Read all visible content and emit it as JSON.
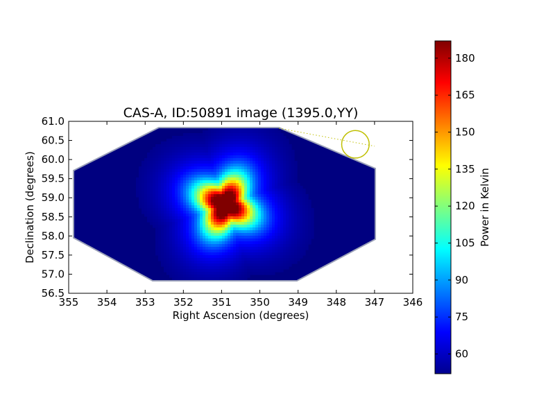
{
  "chart_data": {
    "type": "heatmap",
    "title": "CAS-A, ID:50891 image (1395.0,YY)",
    "xlabel": "Right Ascension (degrees)",
    "ylabel": "Declination (degrees)",
    "x_ticks": [
      "355",
      "354",
      "353",
      "352",
      "351",
      "350",
      "349",
      "348",
      "347",
      "346"
    ],
    "y_ticks": [
      "61.0",
      "60.5",
      "60.0",
      "59.5",
      "59.0",
      "58.5",
      "58.0",
      "57.5",
      "57.0",
      "56.5"
    ],
    "xlim": [
      355,
      346
    ],
    "ylim": [
      56.5,
      61.0
    ],
    "x_inverted": true,
    "colormap": "jet",
    "colorbar": {
      "label": "Power in Kelvin",
      "ticks": [
        "180",
        "165",
        "150",
        "135",
        "120",
        "105",
        "90",
        "75",
        "60"
      ],
      "range": [
        52,
        187
      ]
    },
    "peak": {
      "ra": 350.9,
      "dec": 58.82,
      "value": 187
    },
    "background_value": 52,
    "grid": false,
    "annotations": {
      "circle": {
        "ra": 347.5,
        "dec": 60.4,
        "radius_deg": 0.36,
        "color": "#bfbf00"
      },
      "dotted_line": {
        "from": [
          349.5,
          60.82
        ],
        "to": [
          347.0,
          60.35
        ],
        "color": "#bfbf00"
      }
    }
  }
}
